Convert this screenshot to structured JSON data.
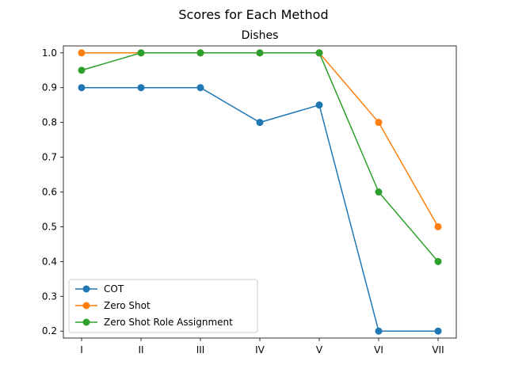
{
  "chart_data": {
    "type": "line",
    "title": "Scores for Each Method",
    "subtitle": "Dishes",
    "xlabel": "",
    "ylabel": "",
    "categories": [
      "I",
      "II",
      "III",
      "IV",
      "V",
      "VI",
      "VII"
    ],
    "ylim": [
      0.18,
      1.02
    ],
    "yticks": [
      0.2,
      0.3,
      0.4,
      0.5,
      0.6,
      0.7,
      0.8,
      0.9,
      1.0
    ],
    "ytick_labels": [
      "0.2",
      "0.3",
      "0.4",
      "0.5",
      "0.6",
      "0.7",
      "0.8",
      "0.9",
      "1.0"
    ],
    "grid": false,
    "legend_position": "lower-left",
    "series": [
      {
        "name": "COT",
        "color": "#1f77b4",
        "values": [
          0.9,
          0.9,
          0.9,
          0.8,
          0.85,
          0.2,
          0.2
        ]
      },
      {
        "name": "Zero Shot",
        "color": "#ff7f0e",
        "values": [
          1.0,
          1.0,
          1.0,
          1.0,
          1.0,
          0.8,
          0.5
        ]
      },
      {
        "name": "Zero Shot Role Assignment",
        "color": "#2ca02c",
        "values": [
          0.95,
          1.0,
          1.0,
          1.0,
          1.0,
          0.6,
          0.4
        ]
      }
    ]
  }
}
